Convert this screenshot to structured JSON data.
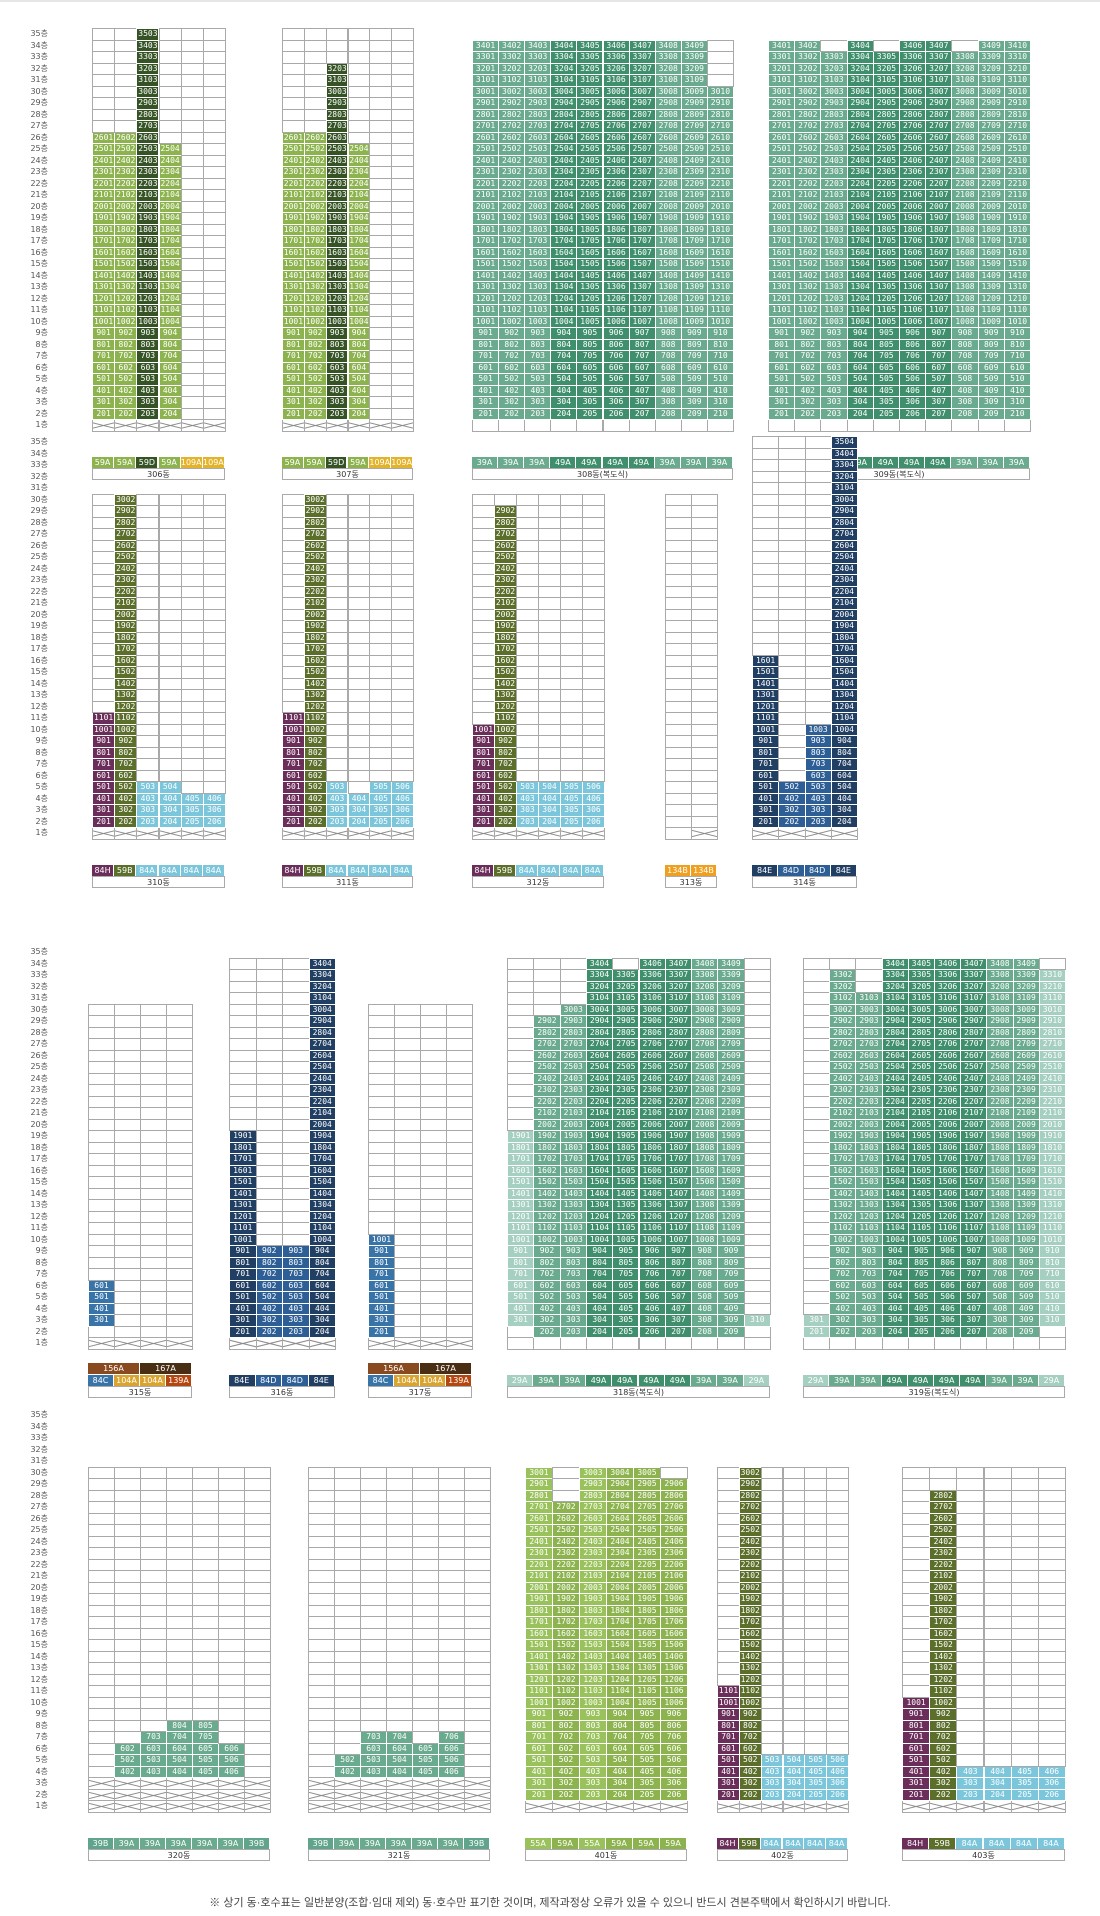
{
  "title": "",
  "colors": {
    "59A": "#8db34e",
    "59D": "#355325",
    "109A": "#e3b32b",
    "39A": "#6aaa8f",
    "49A": "#3f8f6d",
    "84H": "#6b2d5a",
    "59B": "#5b6e2a",
    "84A": "#7cc6dc",
    "134B": "#f0a020",
    "84E": "#213f63",
    "84D": "#2d5f96",
    "84C": "#3974a8",
    "156A": "#8a4a20",
    "167A": "#4a2e14",
    "139A": "#b4460f",
    "104A": "#d9a530",
    "29A": "#a5cfc0",
    "39B": "#5fa48b",
    "55A": "#9ac25c",
    "55B": "#6b8a30"
  },
  "floors": [
    "35층",
    "34층",
    "33층",
    "32층",
    "31층",
    "30층",
    "29층",
    "28층",
    "27층",
    "26층",
    "25층",
    "24층",
    "23층",
    "22층",
    "21층",
    "20층",
    "19층",
    "18층",
    "17층",
    "16층",
    "15층",
    "14층",
    "13층",
    "12층",
    "11층",
    "10층",
    "9층",
    "8층",
    "7층",
    "6층",
    "5층",
    "4층",
    "3층",
    "2층",
    "1층"
  ],
  "buildings": [
    {
      "id": "306",
      "name": "306동",
      "cols": [
        "59A",
        "59A",
        "59D",
        "59A",
        "109A",
        "109A"
      ],
      "top": [
        26,
        26,
        35,
        25,
        0,
        0
      ],
      "bottom": [
        2,
        2,
        2,
        2,
        0,
        0
      ],
      "xbottom": [
        1,
        1,
        1,
        1,
        1,
        1
      ]
    },
    {
      "id": "307",
      "name": "307동",
      "cols": [
        "59A",
        "59A",
        "59D",
        "59A",
        "109A",
        "109A"
      ],
      "top": [
        26,
        26,
        32,
        25,
        0,
        0
      ],
      "bottom": [
        2,
        2,
        2,
        2,
        0,
        0
      ],
      "xbottom": [
        1,
        1,
        1,
        1,
        1,
        1
      ]
    },
    {
      "id": "308",
      "name": "308동(복도식)",
      "cols": [
        "39A",
        "39A",
        "39A",
        "49A",
        "49A",
        "49A",
        "49A",
        "39A",
        "39A",
        "39A"
      ],
      "top": [
        34,
        34,
        34,
        34,
        34,
        34,
        34,
        34,
        34,
        30
      ],
      "bottom": [
        2,
        2,
        2,
        2,
        2,
        2,
        2,
        2,
        2,
        2
      ],
      "xbottom": [
        0,
        0,
        0,
        0,
        0,
        0,
        0,
        0,
        0,
        0
      ]
    },
    {
      "id": "309",
      "name": "309동(복도식)",
      "cols": [
        "39A",
        "39A",
        "39A",
        "49A",
        "49A",
        "49A",
        "49A",
        "39A",
        "39A",
        "39A"
      ],
      "top": [
        34,
        34,
        33,
        34,
        33,
        34,
        34,
        33,
        34,
        34
      ],
      "bottom": [
        2,
        2,
        2,
        2,
        2,
        2,
        2,
        2,
        2,
        2
      ],
      "xbottom": [
        0,
        0,
        0,
        0,
        0,
        0,
        0,
        0,
        0,
        0
      ]
    },
    {
      "id": "310",
      "name": "310동",
      "cols": [
        "84H",
        "59B",
        "84A",
        "84A",
        "84A",
        "84A"
      ],
      "top": [
        11,
        30,
        5,
        5,
        4,
        4
      ],
      "bottom": [
        2,
        2,
        2,
        2,
        2,
        2
      ],
      "xbottom": [
        1,
        1,
        1,
        1,
        1,
        1
      ]
    },
    {
      "id": "311",
      "name": "311동",
      "cols": [
        "84H",
        "59B",
        "84A",
        "84A",
        "84A",
        "84A"
      ],
      "top": [
        11,
        30,
        5,
        4,
        5,
        5
      ],
      "bottom": [
        2,
        2,
        2,
        2,
        2,
        2
      ],
      "xbottom": [
        1,
        1,
        1,
        1,
        1,
        1
      ]
    },
    {
      "id": "312",
      "name": "312동",
      "cols": [
        "84H",
        "59B",
        "84A",
        "84A",
        "84A",
        "84A"
      ],
      "top": [
        10,
        29,
        5,
        5,
        5,
        5
      ],
      "bottom": [
        2,
        2,
        2,
        2,
        2,
        2
      ],
      "xbottom": [
        1,
        1,
        1,
        1,
        1,
        1
      ]
    },
    {
      "id": "313",
      "name": "313동",
      "cols": [
        "134B",
        "134B"
      ],
      "top": [
        0,
        0
      ],
      "bottom": [
        0,
        0
      ],
      "xbottom": [
        0,
        1
      ]
    },
    {
      "id": "314",
      "name": "314동",
      "cols": [
        "84E",
        "84D",
        "84D",
        "84E"
      ],
      "top": [
        16,
        5,
        10,
        35
      ],
      "bottom": [
        2,
        2,
        2,
        2
      ],
      "xbottom": [
        1,
        1,
        1,
        1
      ]
    },
    {
      "id": "315",
      "name": "315동",
      "cols": [
        "84C",
        "104A",
        "104A",
        "139A"
      ],
      "top": [
        6,
        0,
        0,
        0
      ],
      "bottom": [
        3,
        0,
        0,
        0
      ],
      "xbottom": [
        1,
        1,
        1,
        1
      ]
    },
    {
      "id": "316",
      "name": "316동",
      "cols": [
        "84E",
        "84D",
        "84D",
        "84E"
      ],
      "top": [
        19,
        9,
        9,
        34
      ],
      "bottom": [
        2,
        2,
        2,
        2
      ],
      "xbottom": [
        1,
        1,
        1,
        1
      ]
    },
    {
      "id": "317",
      "name": "317동",
      "cols": [
        "84C",
        "104A",
        "104A",
        "139A"
      ],
      "top": [
        10,
        0,
        0,
        0
      ],
      "bottom": [
        2,
        0,
        0,
        0
      ],
      "xbottom": [
        1,
        1,
        1,
        1
      ]
    },
    {
      "id": "318",
      "name": "318동(복도식)",
      "cols": [
        "29A",
        "39A",
        "39A",
        "49A",
        "49A",
        "49A",
        "49A",
        "39A",
        "39A",
        "29A"
      ],
      "top": [
        19,
        29,
        30,
        34,
        33,
        34,
        34,
        34,
        34,
        3
      ],
      "bottom": [
        3,
        2,
        2,
        2,
        2,
        2,
        2,
        2,
        2,
        3
      ],
      "xbottom": [
        0,
        0,
        0,
        0,
        0,
        0,
        0,
        0,
        0,
        0
      ]
    },
    {
      "id": "319",
      "name": "319동(복도식)",
      "cols": [
        "29A",
        "39A",
        "39A",
        "49A",
        "49A",
        "49A",
        "49A",
        "39A",
        "39A",
        "29A"
      ],
      "top": [
        3,
        33,
        31,
        34,
        34,
        34,
        34,
        34,
        34,
        33
      ],
      "bottom": [
        2,
        2,
        2,
        2,
        2,
        2,
        2,
        2,
        2,
        3
      ],
      "xbottom": [
        0,
        0,
        0,
        0,
        0,
        0,
        0,
        0,
        0,
        0
      ]
    },
    {
      "id": "320",
      "name": "320동",
      "cols": [
        "39B",
        "39A",
        "39A",
        "39A",
        "39A",
        "39A",
        "39B"
      ],
      "top": [
        0,
        6,
        7,
        8,
        8,
        6,
        0
      ],
      "bottom": [
        0,
        4,
        4,
        4,
        4,
        4,
        0
      ],
      "xbottom": [
        3,
        3,
        3,
        3,
        3,
        3,
        3
      ]
    },
    {
      "id": "321",
      "name": "321동",
      "cols": [
        "39B",
        "39A",
        "39A",
        "39A",
        "39A",
        "39A",
        "39B"
      ],
      "top": [
        0,
        5,
        7,
        7,
        6,
        7,
        0
      ],
      "bottom": [
        0,
        4,
        4,
        4,
        4,
        4,
        0
      ],
      "xbottom": [
        3,
        3,
        3,
        3,
        3,
        3,
        3
      ]
    },
    {
      "id": "401",
      "name": "401동",
      "cols": [
        "55A",
        "59A",
        "55A",
        "59A",
        "59A",
        "59A"
      ],
      "top": [
        30,
        27,
        30,
        30,
        30,
        29
      ],
      "bottom": [
        2,
        2,
        2,
        2,
        2,
        2
      ],
      "xbottom": [
        1,
        1,
        1,
        1,
        1,
        1
      ]
    },
    {
      "id": "402",
      "name": "402동",
      "cols": [
        "84H",
        "59B",
        "84A",
        "84A",
        "84A",
        "84A"
      ],
      "top": [
        11,
        30,
        5,
        5,
        5,
        5
      ],
      "bottom": [
        2,
        2,
        2,
        2,
        2,
        2
      ],
      "xbottom": [
        1,
        1,
        1,
        1,
        1,
        1
      ]
    },
    {
      "id": "403",
      "name": "403동",
      "cols": [
        "84H",
        "59B",
        "84A",
        "84A",
        "84A",
        "84A"
      ],
      "top": [
        10,
        28,
        4,
        4,
        4,
        4
      ],
      "bottom": [
        2,
        2,
        2,
        2,
        2,
        2
      ],
      "xbottom": [
        1,
        1,
        1,
        1,
        1,
        1
      ]
    }
  ],
  "legends": {
    "306": [
      "59A",
      "59A",
      "59D",
      "59A",
      "109A",
      "109A"
    ],
    "307": [
      "59A",
      "59A",
      "59D",
      "59A",
      "109A",
      "109A"
    ],
    "308": [
      "39A",
      "39A",
      "39A",
      "49A",
      "49A",
      "49A",
      "49A",
      "39A",
      "39A",
      "39A"
    ],
    "309": [
      "39A",
      "39A",
      "39A",
      "49A",
      "49A",
      "49A",
      "49A",
      "39A",
      "39A",
      "39A"
    ],
    "310": [
      "84H",
      "59B",
      "84A",
      "84A",
      "84A",
      "84A"
    ],
    "311": [
      "84H",
      "59B",
      "84A",
      "84A",
      "84A",
      "84A"
    ],
    "312": [
      "84H",
      "59B",
      "84A",
      "84A",
      "84A",
      "84A"
    ],
    "313": [
      "134B",
      "134B"
    ],
    "314": [
      "84E",
      "84D",
      "84D",
      "84E"
    ],
    "315": [
      "84C",
      "104A",
      "104A",
      "139A"
    ],
    "316": [
      "84E",
      "84D",
      "84D",
      "84E"
    ],
    "317": [
      "84C",
      "104A",
      "104A",
      "139A"
    ],
    "318": [
      "29A",
      "39A",
      "39A",
      "49A",
      "49A",
      "49A",
      "49A",
      "39A",
      "39A",
      "29A"
    ],
    "319": [
      "29A",
      "39A",
      "39A",
      "49A",
      "49A",
      "49A",
      "49A",
      "39A",
      "39A",
      "29A"
    ],
    "320": [
      "39B",
      "39A",
      "39A",
      "39A",
      "39A",
      "39A",
      "39B"
    ],
    "321": [
      "39B",
      "39A",
      "39A",
      "39A",
      "39A",
      "39A",
      "39B"
    ],
    "401": [
      "55A",
      "59A",
      "55A",
      "59A",
      "59A",
      "59A"
    ],
    "402": [
      "84H",
      "59B",
      "84A",
      "84A",
      "84A",
      "84A"
    ],
    "403": [
      "84H",
      "59B",
      "84A",
      "84A",
      "84A",
      "84A"
    ]
  },
  "upper_legends": {
    "315": [
      "156A",
      "167A"
    ],
    "317": [
      "156A",
      "167A"
    ]
  },
  "footnote": "※ 상기 동·호수표는 일반분양(조합·임대 제외) 동·호수만 표기한 것이며, 제작과정상 오류가 있을 수 있으니 반드시 견본주택에서 확인하시기 바랍니다."
}
